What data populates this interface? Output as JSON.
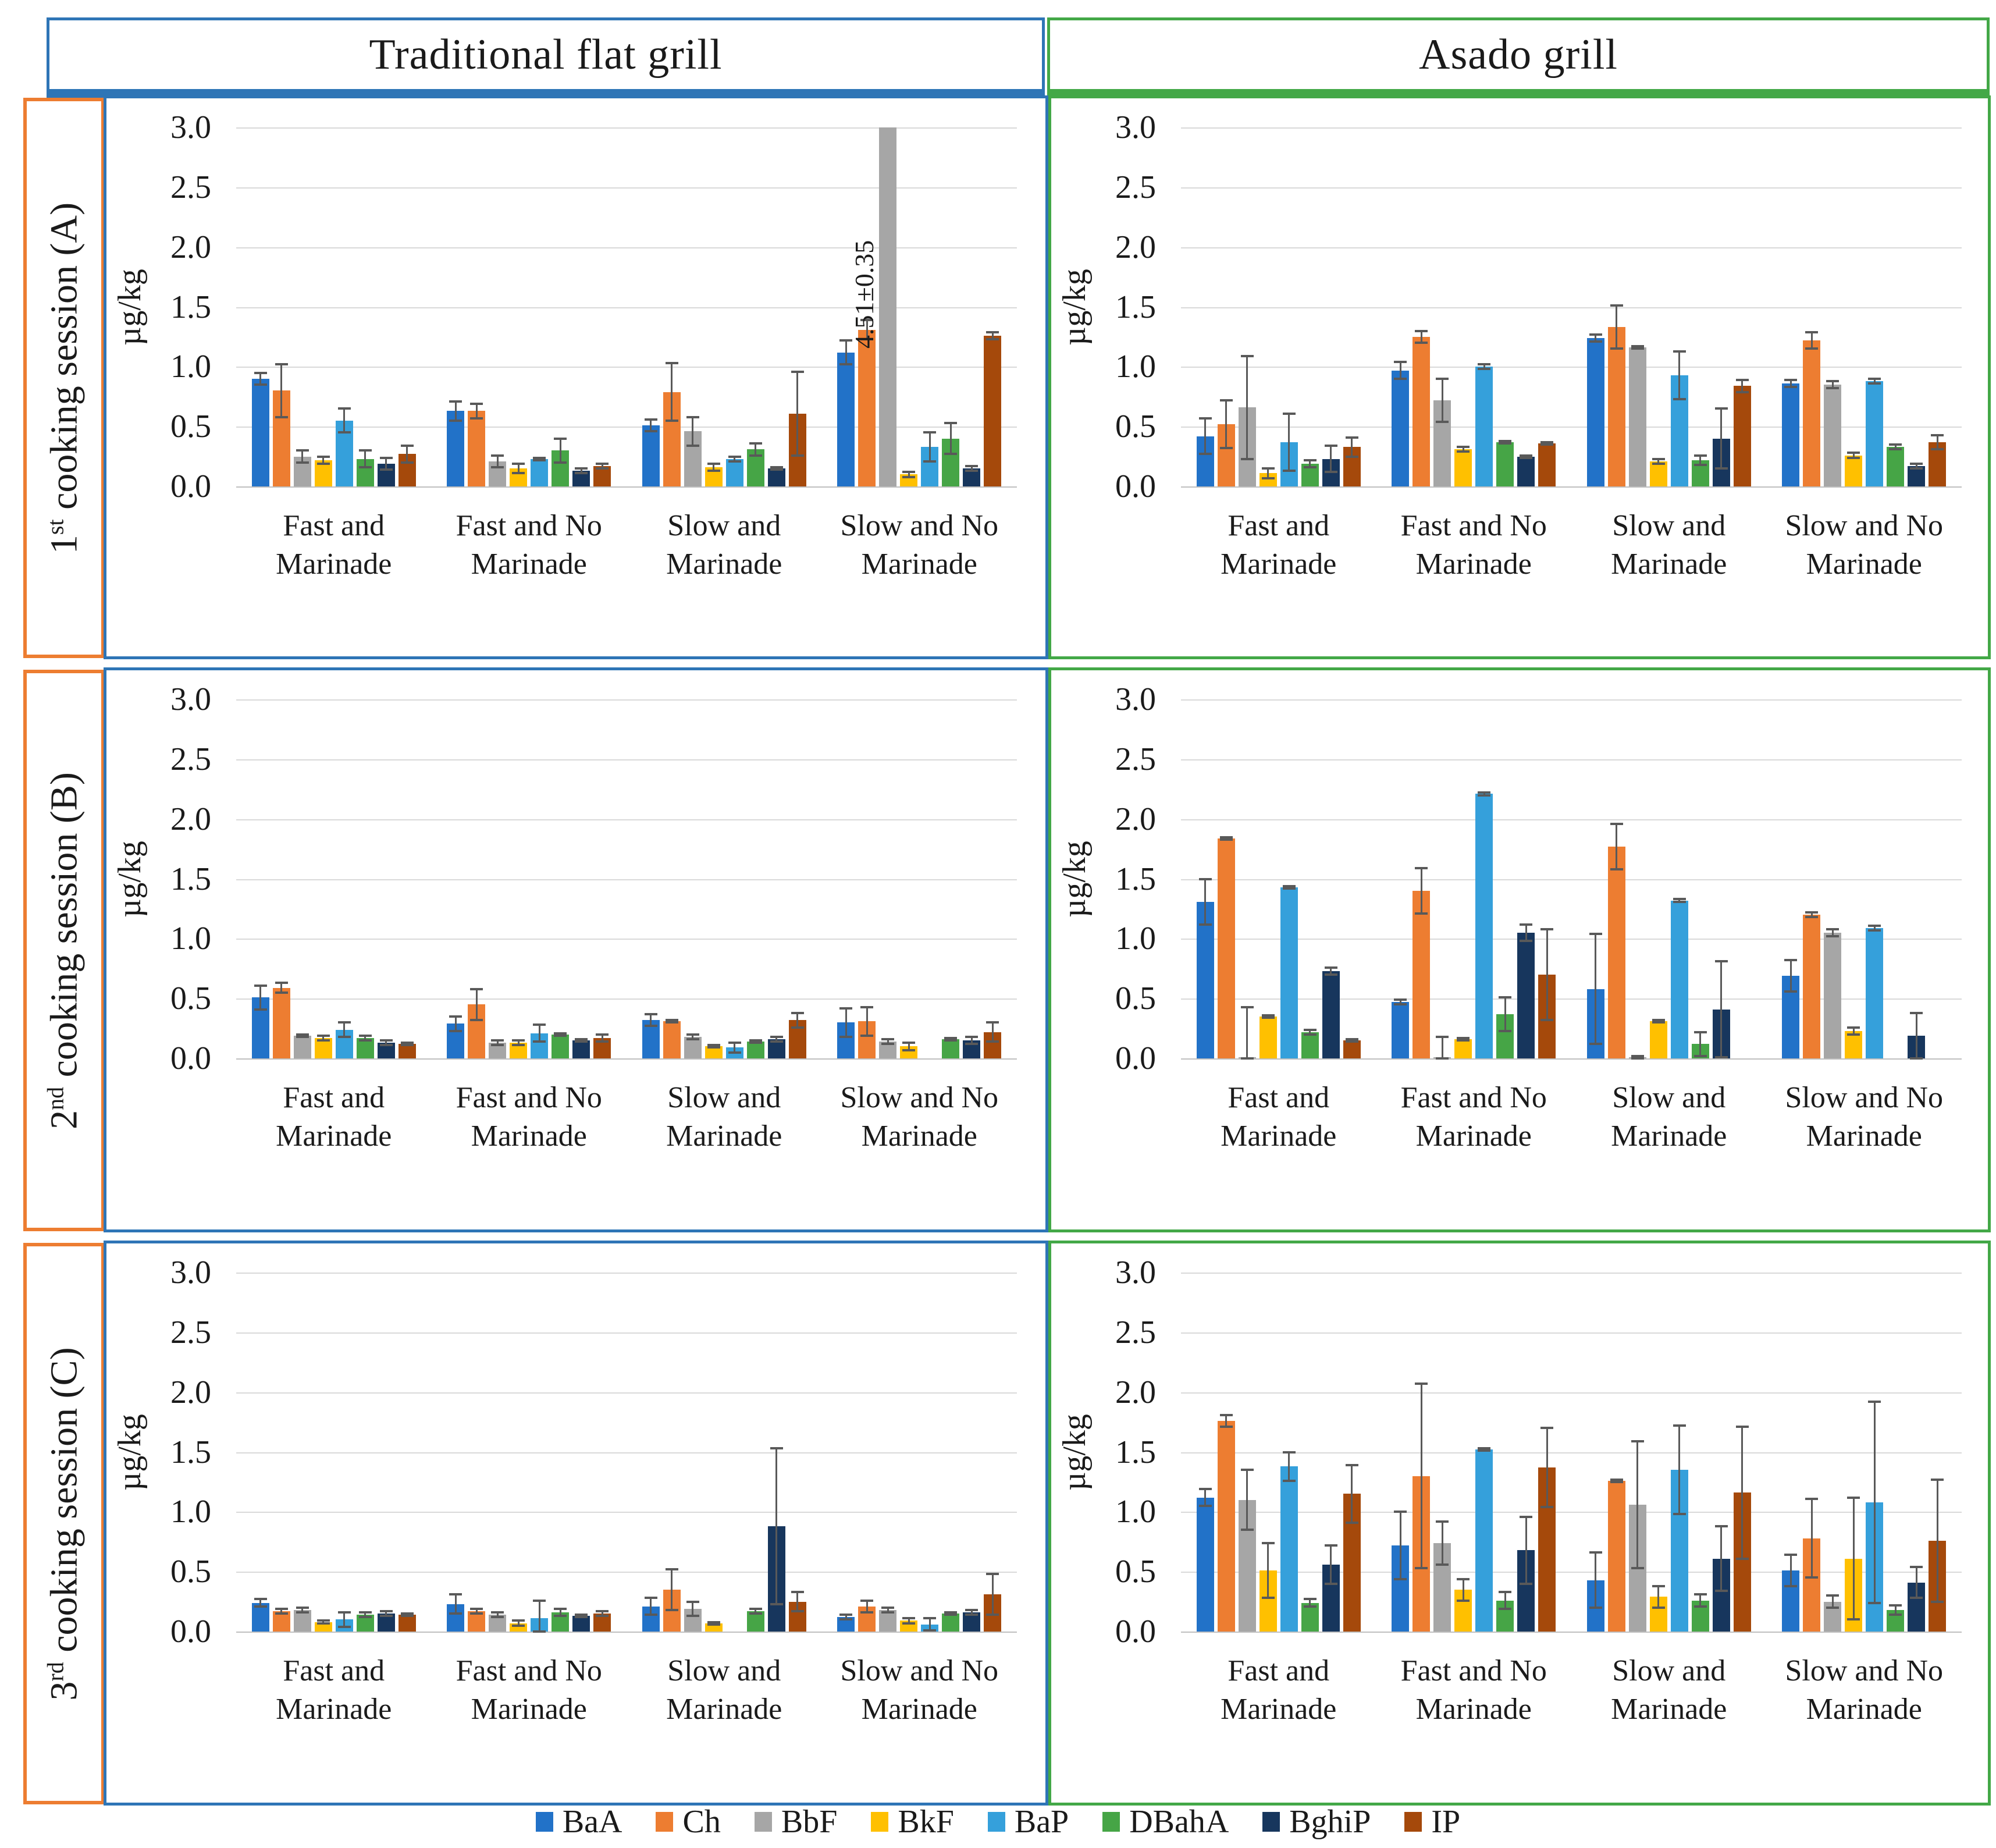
{
  "columns": [
    {
      "label": "Traditional flat grill",
      "border_color": "#2E75B6"
    },
    {
      "label": "Asado grill",
      "border_color": "#43A847"
    }
  ],
  "rows": [
    {
      "num": "1",
      "ord": "st",
      "rest": " cooking session (A)",
      "border_color": "#ED7D31"
    },
    {
      "num": "2",
      "ord": "nd",
      "rest": " cooking session (B)",
      "border_color": "#ED7D31"
    },
    {
      "num": "3",
      "ord": "rd",
      "rest": " cooking session (C)",
      "border_color": "#ED7D31"
    }
  ],
  "colors": {
    "gridline": "#D9D9D9",
    "error_bar": "#595959",
    "traditional_border": "#2E75B6",
    "asado_border": "#43A847",
    "session_border": "#ED7D31"
  },
  "chart_data": {
    "type": "bar",
    "ylabel": "µg/kg",
    "ylim": [
      0,
      3.0
    ],
    "yticks": [
      "3.0",
      "2.5",
      "2.0",
      "1.5",
      "1.0",
      "0.5",
      "0.0"
    ],
    "grid": "horizontal gridlines every 0.5",
    "legend_position": "bottom",
    "categories": [
      "Fast and Marinade",
      "Fast and No Marinade",
      "Slow and Marinade",
      "Slow and No Marinade"
    ],
    "categories_display": [
      [
        "Fast and",
        "Marinade"
      ],
      [
        "Fast and No",
        "Marinade"
      ],
      [
        "Slow and",
        "Marinade"
      ],
      [
        "Slow and No",
        "Marinade"
      ]
    ],
    "series": [
      {
        "name": "BaA",
        "color": "#2272C8"
      },
      {
        "name": "Ch",
        "color": "#ED7D31"
      },
      {
        "name": "BbF",
        "color": "#A6A6A6"
      },
      {
        "name": "BkF",
        "color": "#FFC000"
      },
      {
        "name": "BaP",
        "color": "#35A0DB"
      },
      {
        "name": "DBahA",
        "color": "#46A546"
      },
      {
        "name": "BghiP",
        "color": "#17365D"
      },
      {
        "name": "IP",
        "color": "#A5490B"
      }
    ],
    "charts": [
      {
        "grill": "Traditional flat grill",
        "session": "1st cooking session (A)",
        "groups": [
          {
            "values": [
              0.9,
              0.8,
              0.25,
              0.22,
              0.55,
              0.23,
              0.19,
              0.27
            ],
            "errors": [
              0.05,
              0.22,
              0.05,
              0.03,
              0.1,
              0.07,
              0.05,
              0.07
            ]
          },
          {
            "values": [
              0.63,
              0.63,
              0.21,
              0.15,
              0.23,
              0.3,
              0.13,
              0.17
            ],
            "errors": [
              0.08,
              0.06,
              0.05,
              0.04,
              0.01,
              0.1,
              0.02,
              0.02
            ]
          },
          {
            "values": [
              0.51,
              0.79,
              0.46,
              0.16,
              0.23,
              0.31,
              0.15,
              0.61
            ],
            "errors": [
              0.05,
              0.24,
              0.12,
              0.03,
              0.02,
              0.05,
              0.01,
              0.35
            ]
          },
          {
            "values": [
              1.12,
              1.31,
              4.51,
              0.1,
              0.33,
              0.4,
              0.15,
              1.26
            ],
            "errors": [
              0.1,
              0.08,
              0.35,
              0.02,
              0.12,
              0.13,
              0.02,
              0.03
            ]
          }
        ],
        "annotations": [
          {
            "group_index": 3,
            "series_index": 2,
            "label": "4.51±0.35",
            "note": "bar clipped at 3.0"
          }
        ]
      },
      {
        "grill": "Asado grill",
        "session": "1st cooking session (A)",
        "groups": [
          {
            "values": [
              0.42,
              0.52,
              0.66,
              0.11,
              0.37,
              0.19,
              0.23,
              0.33
            ],
            "errors": [
              0.15,
              0.2,
              0.43,
              0.04,
              0.24,
              0.03,
              0.11,
              0.08
            ]
          },
          {
            "values": [
              0.97,
              1.25,
              0.72,
              0.31,
              1.0,
              0.37,
              0.25,
              0.36
            ],
            "errors": [
              0.07,
              0.05,
              0.18,
              0.02,
              0.02,
              0.01,
              0.01,
              0.01
            ]
          },
          {
            "values": [
              1.24,
              1.33,
              1.16,
              0.21,
              0.93,
              0.22,
              0.4,
              0.84
            ],
            "errors": [
              0.03,
              0.18,
              0.01,
              0.02,
              0.2,
              0.04,
              0.25,
              0.05
            ]
          },
          {
            "values": [
              0.86,
              1.22,
              0.85,
              0.26,
              0.88,
              0.33,
              0.17,
              0.37
            ],
            "errors": [
              0.03,
              0.07,
              0.03,
              0.02,
              0.02,
              0.02,
              0.02,
              0.06
            ]
          }
        ],
        "annotations": []
      },
      {
        "grill": "Traditional flat grill",
        "session": "2nd cooking session (B)",
        "groups": [
          {
            "values": [
              0.51,
              0.59,
              0.19,
              0.17,
              0.24,
              0.17,
              0.13,
              0.12
            ],
            "errors": [
              0.1,
              0.04,
              0.01,
              0.02,
              0.06,
              0.02,
              0.02,
              0.01
            ]
          },
          {
            "values": [
              0.29,
              0.45,
              0.13,
              0.13,
              0.21,
              0.2,
              0.15,
              0.17
            ],
            "errors": [
              0.06,
              0.13,
              0.02,
              0.02,
              0.07,
              0.01,
              0.01,
              0.03
            ]
          },
          {
            "values": [
              0.32,
              0.31,
              0.18,
              0.1,
              0.09,
              0.14,
              0.16,
              0.32
            ],
            "errors": [
              0.05,
              0.01,
              0.02,
              0.01,
              0.04,
              0.01,
              0.02,
              0.06
            ]
          },
          {
            "values": [
              0.3,
              0.31,
              0.14,
              0.1,
              0.0,
              0.16,
              0.15,
              0.22
            ],
            "errors": [
              0.12,
              0.12,
              0.02,
              0.03,
              0.0,
              0.01,
              0.03,
              0.08
            ]
          }
        ],
        "annotations": []
      },
      {
        "grill": "Asado grill",
        "session": "2nd cooking session (B)",
        "groups": [
          {
            "values": [
              1.31,
              1.84,
              0.01,
              0.35,
              1.43,
              0.22,
              0.73,
              0.15
            ],
            "errors": [
              0.19,
              0.01,
              0.42,
              0.01,
              0.01,
              0.02,
              0.03,
              0.01
            ]
          },
          {
            "values": [
              0.47,
              1.4,
              0.01,
              0.16,
              2.21,
              0.37,
              1.05,
              0.7
            ],
            "errors": [
              0.02,
              0.19,
              0.17,
              0.01,
              0.01,
              0.14,
              0.07,
              0.38
            ]
          },
          {
            "values": [
              0.58,
              1.77,
              0.01,
              0.31,
              1.32,
              0.12,
              0.41,
              0.0
            ],
            "errors": [
              0.46,
              0.19,
              0.01,
              0.01,
              0.01,
              0.1,
              0.4,
              0.0
            ]
          },
          {
            "values": [
              0.69,
              1.2,
              1.05,
              0.23,
              1.09,
              0.0,
              0.19,
              0.0
            ],
            "errors": [
              0.13,
              0.02,
              0.03,
              0.03,
              0.02,
              0.0,
              0.19,
              0.0
            ]
          }
        ],
        "annotations": []
      },
      {
        "grill": "Traditional flat grill",
        "session": "3rd cooking session (C)",
        "groups": [
          {
            "values": [
              0.24,
              0.17,
              0.18,
              0.08,
              0.1,
              0.14,
              0.15,
              0.14
            ],
            "errors": [
              0.03,
              0.02,
              0.02,
              0.01,
              0.06,
              0.02,
              0.02,
              0.01
            ]
          },
          {
            "values": [
              0.23,
              0.17,
              0.14,
              0.07,
              0.11,
              0.16,
              0.13,
              0.15
            ],
            "errors": [
              0.08,
              0.02,
              0.02,
              0.02,
              0.15,
              0.03,
              0.01,
              0.02
            ]
          },
          {
            "values": [
              0.21,
              0.35,
              0.19,
              0.07,
              0.0,
              0.17,
              0.88,
              0.25
            ],
            "errors": [
              0.07,
              0.17,
              0.06,
              0.01,
              0.0,
              0.02,
              0.65,
              0.08
            ]
          },
          {
            "values": [
              0.12,
              0.21,
              0.18,
              0.09,
              0.06,
              0.15,
              0.16,
              0.31
            ],
            "errors": [
              0.02,
              0.05,
              0.02,
              0.02,
              0.05,
              0.01,
              0.02,
              0.17
            ]
          }
        ],
        "annotations": []
      },
      {
        "grill": "Asado grill",
        "session": "3rd cooking session (C)",
        "groups": [
          {
            "values": [
              1.12,
              1.76,
              1.1,
              0.51,
              1.38,
              0.24,
              0.56,
              1.15
            ],
            "errors": [
              0.07,
              0.05,
              0.25,
              0.23,
              0.12,
              0.03,
              0.16,
              0.24
            ]
          },
          {
            "values": [
              0.72,
              1.3,
              0.74,
              0.35,
              1.52,
              0.26,
              0.68,
              1.37
            ],
            "errors": [
              0.28,
              0.77,
              0.18,
              0.09,
              0.01,
              0.07,
              0.28,
              0.33
            ]
          },
          {
            "values": [
              0.43,
              1.26,
              1.06,
              0.29,
              1.35,
              0.26,
              0.61,
              1.16
            ],
            "errors": [
              0.23,
              0.01,
              0.53,
              0.09,
              0.37,
              0.05,
              0.27,
              0.55
            ]
          },
          {
            "values": [
              0.51,
              0.78,
              0.25,
              0.61,
              1.08,
              0.18,
              0.41,
              0.76
            ],
            "errors": [
              0.13,
              0.33,
              0.05,
              0.51,
              0.84,
              0.04,
              0.13,
              0.51
            ]
          }
        ],
        "annotations": []
      }
    ]
  }
}
